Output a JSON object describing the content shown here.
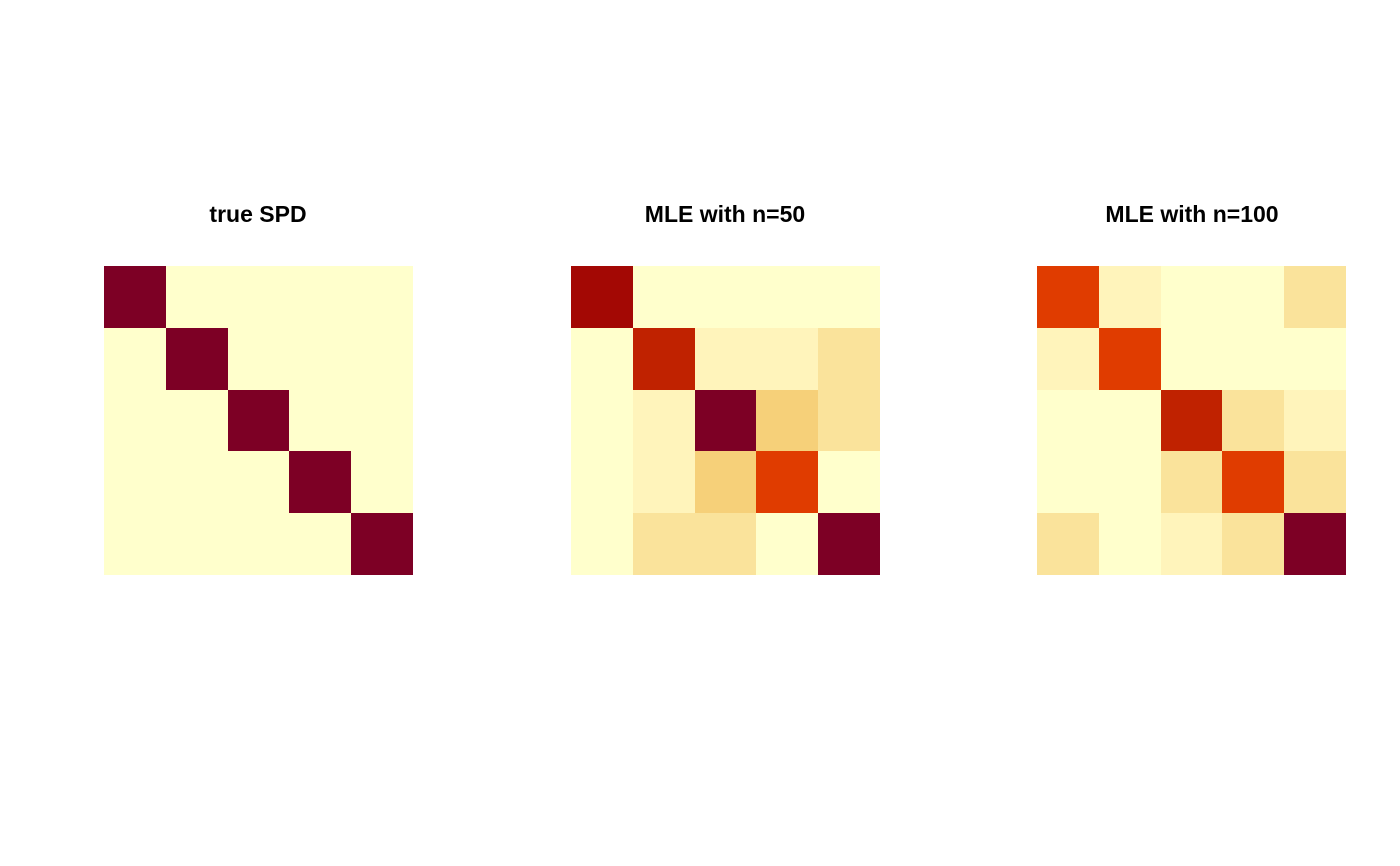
{
  "chart_data": [
    {
      "type": "heatmap",
      "title": "true SPD",
      "rows": 5,
      "cols": 5,
      "color_levels": [
        [
          "#7d0025",
          "#ffffcc",
          "#ffffcc",
          "#ffffcc",
          "#ffffcc"
        ],
        [
          "#ffffcc",
          "#7d0025",
          "#ffffcc",
          "#ffffcc",
          "#ffffcc"
        ],
        [
          "#ffffcc",
          "#ffffcc",
          "#7d0025",
          "#ffffcc",
          "#ffffcc"
        ],
        [
          "#ffffcc",
          "#ffffcc",
          "#ffffcc",
          "#7d0025",
          "#ffffcc"
        ],
        [
          "#ffffcc",
          "#ffffcc",
          "#ffffcc",
          "#ffffcc",
          "#7d0025"
        ]
      ],
      "axes": "none",
      "legend": "none"
    },
    {
      "type": "heatmap",
      "title": "MLE with n=50",
      "rows": 5,
      "cols": 5,
      "color_levels": [
        [
          "#a30804",
          "#ffffcc",
          "#ffffcc",
          "#ffffcc",
          "#ffffcc"
        ],
        [
          "#ffffcc",
          "#c02200",
          "#fff4bb",
          "#fff4bb",
          "#fae39b"
        ],
        [
          "#ffffcc",
          "#fff4bb",
          "#7d0025",
          "#f6d079",
          "#fae39b"
        ],
        [
          "#ffffcc",
          "#fff4bb",
          "#f6d079",
          "#e03c00",
          "#ffffcc"
        ],
        [
          "#ffffcc",
          "#fae39b",
          "#fae39b",
          "#ffffcc",
          "#7d0025"
        ]
      ],
      "axes": "none",
      "legend": "none"
    },
    {
      "type": "heatmap",
      "title": "MLE with n=100",
      "rows": 5,
      "cols": 5,
      "color_levels": [
        [
          "#e03c00",
          "#fff4bb",
          "#ffffcc",
          "#ffffcc",
          "#fae39b"
        ],
        [
          "#fff4bb",
          "#e03c00",
          "#ffffcc",
          "#ffffcc",
          "#ffffcc"
        ],
        [
          "#ffffcc",
          "#ffffcc",
          "#c02200",
          "#fae39b",
          "#fff4bb"
        ],
        [
          "#ffffcc",
          "#ffffcc",
          "#fae39b",
          "#e03c00",
          "#fae39b"
        ],
        [
          "#fae39b",
          "#ffffcc",
          "#fff4bb",
          "#fae39b",
          "#7d0025"
        ]
      ],
      "axes": "none",
      "legend": "none"
    }
  ]
}
